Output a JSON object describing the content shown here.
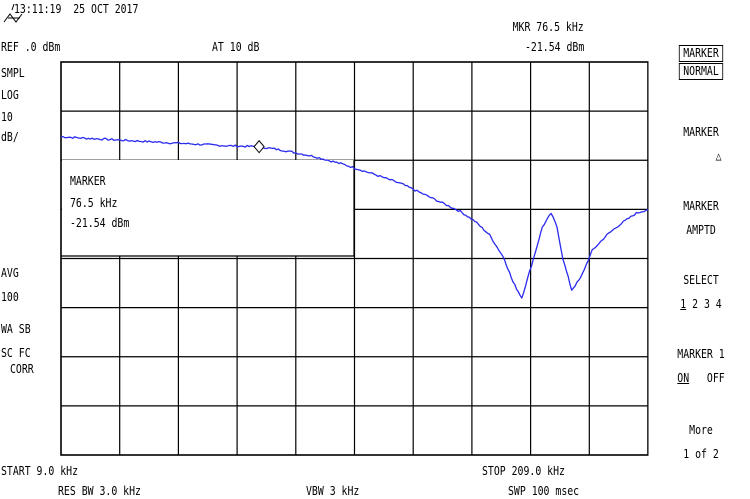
{
  "header": {
    "timestamp": "13:11:19  25 OCT 2017",
    "ref_level": "REF .0 dBm",
    "attenuation": "AT 10 dB",
    "marker_freq": "MKR 76.5 kHz",
    "marker_amp": "-21.54 dBm"
  },
  "left_panel": {
    "mode": "SMPL",
    "scale_type": "LOG",
    "scale_value": "10",
    "scale_unit": "dB/",
    "avg_label": "AVG",
    "avg_count": "100",
    "wa_sb": "WA SB",
    "sc_fc": "SC FC",
    "corr": "CORR"
  },
  "marker_box": {
    "title": "MARKER",
    "freq": "76.5 kHz",
    "amp": "-21.54 dBm"
  },
  "footer": {
    "start": "START 9.0 kHz",
    "stop": "STOP 209.0 kHz",
    "rbw": "RES BW 3.0 kHz",
    "vbw": "VBW 3 kHz",
    "sweep": "SWP 100 msec"
  },
  "softkeys": {
    "k1_line1": "MARKER",
    "k1_line2": "NORMAL",
    "k2_line1": "MARKER",
    "k2_line2": "△",
    "k3_line1": "MARKER",
    "k3_line2": "AMPTD",
    "k4_line1": "SELECT",
    "k4_sel": "1",
    "k4_rest": " 2 3 4",
    "k5_line1": "MARKER 1",
    "k5_on": "ON",
    "k5_off": "OFF",
    "k6_line1": "More",
    "k6_line2": "1 of 2"
  },
  "chart_data": {
    "type": "line",
    "xlabel": "",
    "ylabel": "",
    "xlim": [
      9.0,
      209.0
    ],
    "ylim": [
      -100,
      0
    ],
    "x_unit": "kHz",
    "y_unit": "dBm",
    "grid": true,
    "trace_color": "#2b2bf0",
    "marker": {
      "x": 76.5,
      "y": -21.54
    },
    "series": [
      {
        "x": [
          9,
          15,
          25,
          35,
          45,
          55,
          65,
          76.5,
          85,
          95,
          105,
          115,
          125,
          135,
          145,
          150,
          155,
          160,
          163,
          166,
          170,
          173,
          176,
          178,
          180,
          183,
          186,
          190,
          195,
          200,
          205,
          209
        ],
        "y": [
          -19.0,
          -19.3,
          -19.7,
          -20.1,
          -20.5,
          -20.9,
          -21.3,
          -21.54,
          -22.5,
          -24.0,
          -26.0,
          -28.4,
          -31.0,
          -34.5,
          -38.0,
          -40.5,
          -44.0,
          -50.0,
          -56.0,
          -60.0,
          -50.0,
          -42.0,
          -38.5,
          -42.0,
          -50.0,
          -58.0,
          -55.0,
          -48.0,
          -44.0,
          -41.0,
          -38.5,
          -37.5
        ]
      }
    ]
  }
}
